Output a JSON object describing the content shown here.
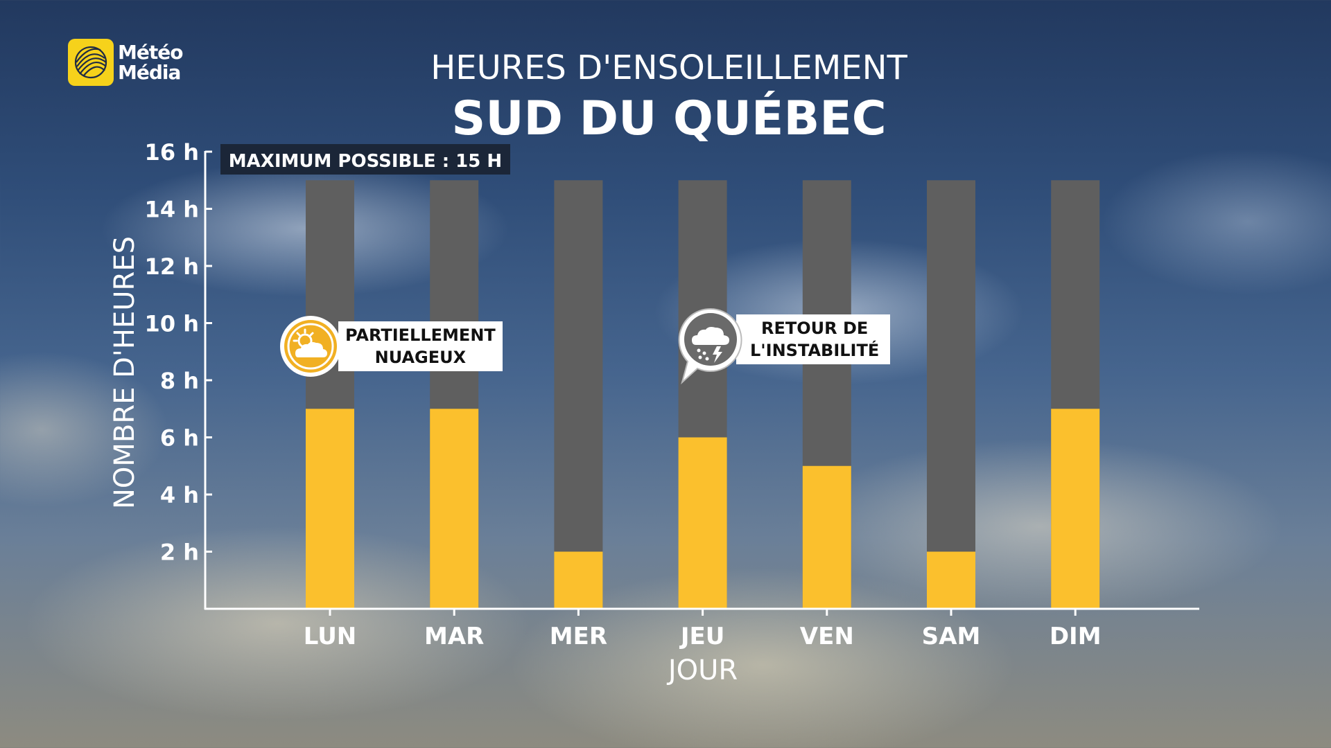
{
  "brand": {
    "line1": "Météo",
    "line2": "Média",
    "logo_color": "#f6d21b"
  },
  "title": "HEURES D'ENSOLEILLEMENT",
  "subtitle": "SUD DU QUÉBEC",
  "max_label": "MAXIMUM POSSIBLE : 15 H",
  "callouts": [
    {
      "icon": "partly-cloudy-icon",
      "line1": "PARTIELLEMENT",
      "line2": "NUAGEUX"
    },
    {
      "icon": "thunderstorm-rain-icon",
      "line1": "RETOUR DE",
      "line2": "L'INSTABILITÉ"
    }
  ],
  "chart_data": {
    "type": "bar",
    "categories": [
      "LUN",
      "MAR",
      "MER",
      "JEU",
      "VEN",
      "SAM",
      "DIM"
    ],
    "series": [
      {
        "name": "",
        "values": [
          7,
          7,
          2,
          6,
          5,
          2,
          7
        ],
        "color": "#fbc02d"
      }
    ],
    "max_possible": 15,
    "max_bar_color": "#5f5f5f",
    "xlabel": "JOUR",
    "ylabel": "NOMBRE D'HEURES",
    "ylim": [
      0,
      16
    ],
    "yticks": [
      2,
      4,
      6,
      8,
      10,
      12,
      14,
      16
    ],
    "ytick_labels": [
      "2 h",
      "4 h",
      "6 h",
      "8 h",
      "10 h",
      "12 h",
      "14 h",
      "16 h"
    ],
    "grid": false,
    "legend": "none"
  }
}
